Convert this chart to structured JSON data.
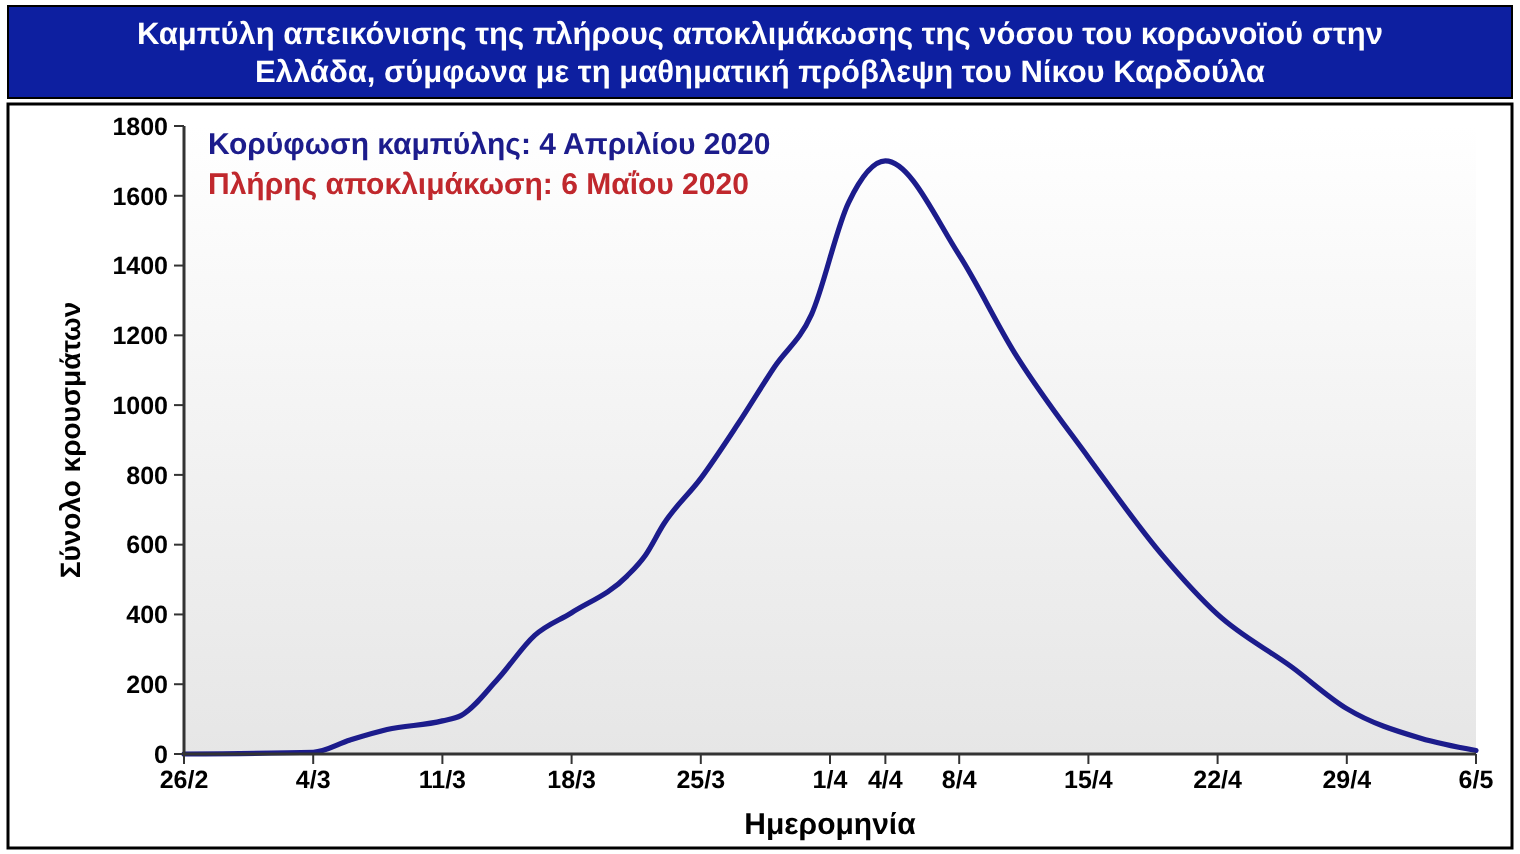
{
  "chart_data": {
    "type": "line",
    "title": "Καμπύλη απεικόνισης της πλήρους αποκλιμάκωσης της νόσου του κορωνοϊού στην Ελλάδα, σύμφωνα με τη μαθηματική πρόβλεψη του Νίκου Καρδούλα",
    "xlabel": "Ημερομηνία",
    "ylabel": "Σύνολο κρουσμάτων",
    "annotations": [
      "Κορύφωση καμπύλης: 4 Απριλίου 2020",
      "Πλήρης αποκλιμάκωση: 6 Μαΐου 2020"
    ],
    "x": [
      "2020-02-26",
      "2020-03-04",
      "2020-03-06",
      "2020-03-08",
      "2020-03-11",
      "2020-03-12",
      "2020-03-14",
      "2020-03-16",
      "2020-03-18",
      "2020-03-21",
      "2020-03-22",
      "2020-03-23",
      "2020-03-25",
      "2020-03-27",
      "2020-03-29",
      "2020-03-31",
      "2020-04-02",
      "2020-04-04",
      "2020-04-08",
      "2020-04-11",
      "2020-04-15",
      "2020-04-19",
      "2020-04-22",
      "2020-04-26",
      "2020-04-29",
      "2020-05-03",
      "2020-05-06"
    ],
    "series": [
      {
        "color": "#1c1c8c",
        "values": [
          0,
          5,
          40,
          70,
          95,
          110,
          215,
          340,
          405,
          510,
          570,
          660,
          790,
          945,
          1110,
          1260,
          1580,
          1700,
          1430,
          1150,
          850,
          570,
          400,
          250,
          130,
          45,
          10
        ]
      }
    ],
    "xlim": [
      "2020-02-26",
      "2020-05-06"
    ],
    "xticks": [
      {
        "value": "2020-02-26",
        "label": "26/2"
      },
      {
        "value": "2020-03-04",
        "label": "4/3"
      },
      {
        "value": "2020-03-11",
        "label": "11/3"
      },
      {
        "value": "2020-03-18",
        "label": "18/3"
      },
      {
        "value": "2020-03-25",
        "label": "25/3"
      },
      {
        "value": "2020-04-01",
        "label": "1/4"
      },
      {
        "value": "2020-04-04",
        "label": "4/4"
      },
      {
        "value": "2020-04-08",
        "label": "8/4"
      },
      {
        "value": "2020-04-15",
        "label": "15/4"
      },
      {
        "value": "2020-04-22",
        "label": "22/4"
      },
      {
        "value": "2020-04-29",
        "label": "29/4"
      },
      {
        "value": "2020-05-06",
        "label": "6/5"
      }
    ],
    "ylim": [
      0,
      1800
    ],
    "yticks": [
      0,
      200,
      400,
      600,
      800,
      1000,
      1200,
      1400,
      1600,
      1800
    ],
    "grid": false,
    "marker": "none",
    "line_style": "solid"
  }
}
